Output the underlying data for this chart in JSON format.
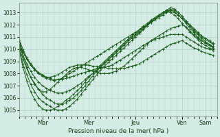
{
  "bg_color": "#d4ece4",
  "grid_color": "#b0d4c8",
  "line_color": "#1a5c1a",
  "marker": "+",
  "markersize": 2.5,
  "linewidth": 0.7,
  "xlabel_text": "Pression niveau de la mer( hPa )",
  "x_tick_labels": [
    "Mar",
    "Mer",
    "Jeu",
    "Ven",
    "Sam"
  ],
  "x_tick_positions": [
    24,
    72,
    120,
    168,
    192
  ],
  "ylim": [
    1004.5,
    1013.8
  ],
  "yticks": [
    1005,
    1006,
    1007,
    1008,
    1009,
    1010,
    1011,
    1012,
    1013
  ],
  "xlim": [
    0,
    204
  ],
  "n_points": 82,
  "series": [
    {
      "x": [
        0,
        4,
        8,
        12,
        16,
        20,
        24,
        28,
        32,
        36,
        40,
        44,
        48,
        52,
        56,
        60,
        64,
        68,
        72,
        76,
        80,
        84,
        88,
        92,
        96,
        100,
        104,
        108,
        112,
        116,
        120,
        124,
        128,
        132,
        136,
        140,
        144,
        148,
        152,
        156,
        160,
        164,
        168,
        172,
        176,
        180,
        184,
        188,
        192,
        196,
        200
      ],
      "y": [
        1010.5,
        1009.8,
        1009.2,
        1008.7,
        1008.3,
        1008.0,
        1007.8,
        1007.6,
        1007.5,
        1007.4,
        1007.5,
        1007.6,
        1007.8,
        1008.0,
        1008.2,
        1008.4,
        1008.6,
        1008.8,
        1009.0,
        1009.2,
        1009.4,
        1009.6,
        1009.8,
        1010.0,
        1010.2,
        1010.4,
        1010.6,
        1010.8,
        1011.0,
        1011.2,
        1011.4,
        1011.6,
        1011.8,
        1012.0,
        1012.2,
        1012.4,
        1012.6,
        1012.8,
        1013.0,
        1013.1,
        1013.0,
        1012.8,
        1012.5,
        1012.2,
        1011.9,
        1011.6,
        1011.3,
        1011.0,
        1010.8,
        1010.6,
        1010.4
      ]
    },
    {
      "x": [
        0,
        4,
        8,
        12,
        16,
        20,
        24,
        28,
        32,
        36,
        40,
        44,
        48,
        52,
        56,
        60,
        64,
        68,
        72,
        76,
        80,
        84,
        88,
        92,
        96,
        100,
        104,
        108,
        112,
        116,
        120,
        124,
        128,
        132,
        136,
        140,
        144,
        148,
        152,
        156,
        160,
        164,
        168,
        172,
        176,
        180,
        184,
        188,
        192,
        196,
        200
      ],
      "y": [
        1010.3,
        1009.5,
        1008.8,
        1008.2,
        1007.7,
        1007.3,
        1007.0,
        1006.8,
        1006.6,
        1006.5,
        1006.4,
        1006.4,
        1006.5,
        1006.6,
        1006.8,
        1007.0,
        1007.2,
        1007.5,
        1007.8,
        1008.0,
        1008.3,
        1008.6,
        1008.9,
        1009.2,
        1009.5,
        1009.8,
        1010.1,
        1010.4,
        1010.7,
        1011.0,
        1011.2,
        1011.5,
        1011.8,
        1012.0,
        1012.3,
        1012.5,
        1012.7,
        1012.9,
        1013.1,
        1013.3,
        1013.2,
        1013.0,
        1012.7,
        1012.3,
        1012.0,
        1011.7,
        1011.4,
        1011.1,
        1010.9,
        1010.7,
        1010.5
      ]
    },
    {
      "x": [
        0,
        4,
        8,
        12,
        16,
        20,
        24,
        28,
        32,
        36,
        40,
        44,
        48,
        52,
        56,
        60,
        64,
        68,
        72,
        76,
        80,
        84,
        88,
        92,
        96,
        100,
        104,
        108,
        112,
        116,
        120,
        124,
        128,
        132,
        136,
        140,
        144,
        148,
        152,
        156,
        160,
        164,
        168,
        172,
        176,
        180,
        184,
        188,
        192,
        196,
        200
      ],
      "y": [
        1010.2,
        1009.2,
        1008.4,
        1007.7,
        1007.2,
        1006.7,
        1006.3,
        1006.0,
        1005.8,
        1005.6,
        1005.5,
        1005.5,
        1005.6,
        1005.8,
        1006.0,
        1006.3,
        1006.6,
        1007.0,
        1007.4,
        1007.8,
        1008.2,
        1008.5,
        1008.8,
        1009.1,
        1009.4,
        1009.7,
        1010.0,
        1010.3,
        1010.6,
        1010.9,
        1011.1,
        1011.4,
        1011.7,
        1012.0,
        1012.3,
        1012.5,
        1012.8,
        1013.0,
        1013.2,
        1013.4,
        1013.3,
        1013.0,
        1012.7,
        1012.3,
        1011.9,
        1011.5,
        1011.2,
        1010.9,
        1010.6,
        1010.4,
        1010.2
      ]
    },
    {
      "x": [
        0,
        4,
        8,
        12,
        16,
        20,
        24,
        28,
        32,
        36,
        40,
        44,
        48,
        52,
        56,
        60,
        64,
        68,
        72,
        76,
        80,
        84,
        88,
        92,
        96,
        100,
        104,
        108,
        112,
        116,
        120,
        124,
        128,
        132,
        136,
        140,
        144,
        148,
        152,
        156,
        160,
        164,
        168,
        172,
        176,
        180,
        184,
        188,
        192,
        196,
        200
      ],
      "y": [
        1010.0,
        1008.8,
        1007.9,
        1007.1,
        1006.5,
        1006.0,
        1005.7,
        1005.5,
        1005.3,
        1005.1,
        1005.0,
        1005.0,
        1005.1,
        1005.3,
        1005.6,
        1005.9,
        1006.3,
        1006.7,
        1007.1,
        1007.5,
        1007.9,
        1008.3,
        1008.6,
        1008.9,
        1009.2,
        1009.5,
        1009.8,
        1010.1,
        1010.4,
        1010.7,
        1011.0,
        1011.3,
        1011.6,
        1011.9,
        1012.2,
        1012.5,
        1012.7,
        1012.9,
        1013.1,
        1013.2,
        1013.1,
        1012.8,
        1012.5,
        1012.1,
        1011.7,
        1011.4,
        1011.0,
        1010.7,
        1010.5,
        1010.3,
        1010.1
      ]
    },
    {
      "x": [
        0,
        4,
        8,
        12,
        16,
        20,
        24,
        28,
        32,
        36,
        40,
        44,
        48,
        52,
        56,
        60,
        64,
        68,
        72,
        76,
        80,
        84,
        88,
        92,
        96,
        100,
        104,
        108,
        112,
        116,
        120,
        124,
        128,
        132,
        136,
        140,
        144,
        148,
        152,
        156,
        160,
        164,
        168,
        172,
        176,
        180,
        184,
        188,
        192,
        196,
        200
      ],
      "y": [
        1010.0,
        1008.5,
        1007.4,
        1006.5,
        1005.9,
        1005.4,
        1005.1,
        1005.0,
        1005.0,
        1005.1,
        1005.3,
        1005.5,
        1005.8,
        1006.0,
        1006.3,
        1006.6,
        1006.9,
        1007.3,
        1007.7,
        1008.0,
        1008.4,
        1008.7,
        1009.0,
        1009.3,
        1009.6,
        1009.9,
        1010.2,
        1010.5,
        1010.8,
        1011.1,
        1011.3,
        1011.6,
        1011.9,
        1012.1,
        1012.4,
        1012.6,
        1012.8,
        1013.0,
        1013.2,
        1013.0,
        1012.8,
        1012.5,
        1012.1,
        1011.8,
        1011.4,
        1011.1,
        1010.8,
        1010.5,
        1010.3,
        1010.1,
        1010.0
      ]
    },
    {
      "x": [
        0,
        4,
        8,
        12,
        16,
        20,
        24,
        28,
        32,
        36,
        40,
        44,
        48,
        52,
        56,
        60,
        64,
        68,
        72,
        76,
        80,
        84,
        88,
        92,
        96,
        100,
        104,
        108,
        112,
        116,
        120,
        124,
        128,
        132,
        136,
        140,
        144,
        148,
        152,
        156,
        160,
        164,
        168,
        172,
        176,
        180,
        184,
        188,
        192,
        196,
        200
      ],
      "y": [
        1010.8,
        1009.5,
        1008.5,
        1007.7,
        1007.1,
        1006.7,
        1006.5,
        1006.5,
        1006.7,
        1007.0,
        1007.3,
        1007.6,
        1007.9,
        1008.2,
        1008.4,
        1008.5,
        1008.5,
        1008.4,
        1008.3,
        1008.2,
        1008.1,
        1008.0,
        1008.0,
        1008.0,
        1008.1,
        1008.2,
        1008.4,
        1008.6,
        1008.9,
        1009.2,
        1009.5,
        1009.8,
        1010.1,
        1010.4,
        1010.7,
        1010.9,
        1011.1,
        1011.3,
        1011.5,
        1011.7,
        1011.8,
        1011.9,
        1012.0,
        1011.8,
        1011.5,
        1011.2,
        1010.9,
        1010.7,
        1010.5,
        1010.3,
        1010.2
      ]
    },
    {
      "x": [
        0,
        4,
        8,
        12,
        16,
        20,
        24,
        28,
        32,
        36,
        40,
        44,
        48,
        52,
        56,
        60,
        64,
        68,
        72,
        76,
        80,
        84,
        88,
        92,
        96,
        100,
        104,
        108,
        112,
        116,
        120,
        124,
        128,
        132,
        136,
        140,
        144,
        148,
        152,
        156,
        160,
        164,
        168,
        172,
        176,
        180,
        184,
        188,
        192,
        196,
        200
      ],
      "y": [
        1010.8,
        1010.0,
        1009.3,
        1008.8,
        1008.4,
        1008.1,
        1007.9,
        1007.7,
        1007.6,
        1007.5,
        1007.5,
        1007.5,
        1007.6,
        1007.7,
        1007.8,
        1007.9,
        1008.0,
        1008.1,
        1008.2,
        1008.3,
        1008.4,
        1008.4,
        1008.5,
        1008.6,
        1008.7,
        1008.9,
        1009.1,
        1009.3,
        1009.5,
        1009.7,
        1009.9,
        1010.1,
        1010.3,
        1010.5,
        1010.7,
        1010.8,
        1010.9,
        1011.0,
        1011.1,
        1011.2,
        1011.2,
        1011.2,
        1011.2,
        1011.0,
        1010.8,
        1010.6,
        1010.4,
        1010.2,
        1010.1,
        1010.0,
        1009.9
      ]
    },
    {
      "x": [
        0,
        4,
        8,
        12,
        16,
        20,
        24,
        28,
        32,
        36,
        40,
        44,
        48,
        52,
        56,
        60,
        64,
        68,
        72,
        76,
        80,
        84,
        88,
        92,
        96,
        100,
        104,
        108,
        112,
        116,
        120,
        124,
        128,
        132,
        136,
        140,
        144,
        148,
        152,
        156,
        160,
        164,
        168,
        172,
        176,
        180,
        184,
        188,
        192,
        196,
        200
      ],
      "y": [
        1010.5,
        1009.8,
        1009.2,
        1008.7,
        1008.3,
        1008.0,
        1007.8,
        1007.7,
        1007.7,
        1007.8,
        1007.9,
        1008.1,
        1008.3,
        1008.5,
        1008.6,
        1008.7,
        1008.7,
        1008.7,
        1008.7,
        1008.6,
        1008.6,
        1008.5,
        1008.5,
        1008.4,
        1008.4,
        1008.4,
        1008.4,
        1008.4,
        1008.5,
        1008.6,
        1008.7,
        1008.8,
        1009.0,
        1009.2,
        1009.4,
        1009.6,
        1009.8,
        1010.0,
        1010.2,
        1010.4,
        1010.5,
        1010.6,
        1010.7,
        1010.5,
        1010.3,
        1010.1,
        1010.0,
        1009.8,
        1009.7,
        1009.6,
        1009.5
      ]
    }
  ]
}
